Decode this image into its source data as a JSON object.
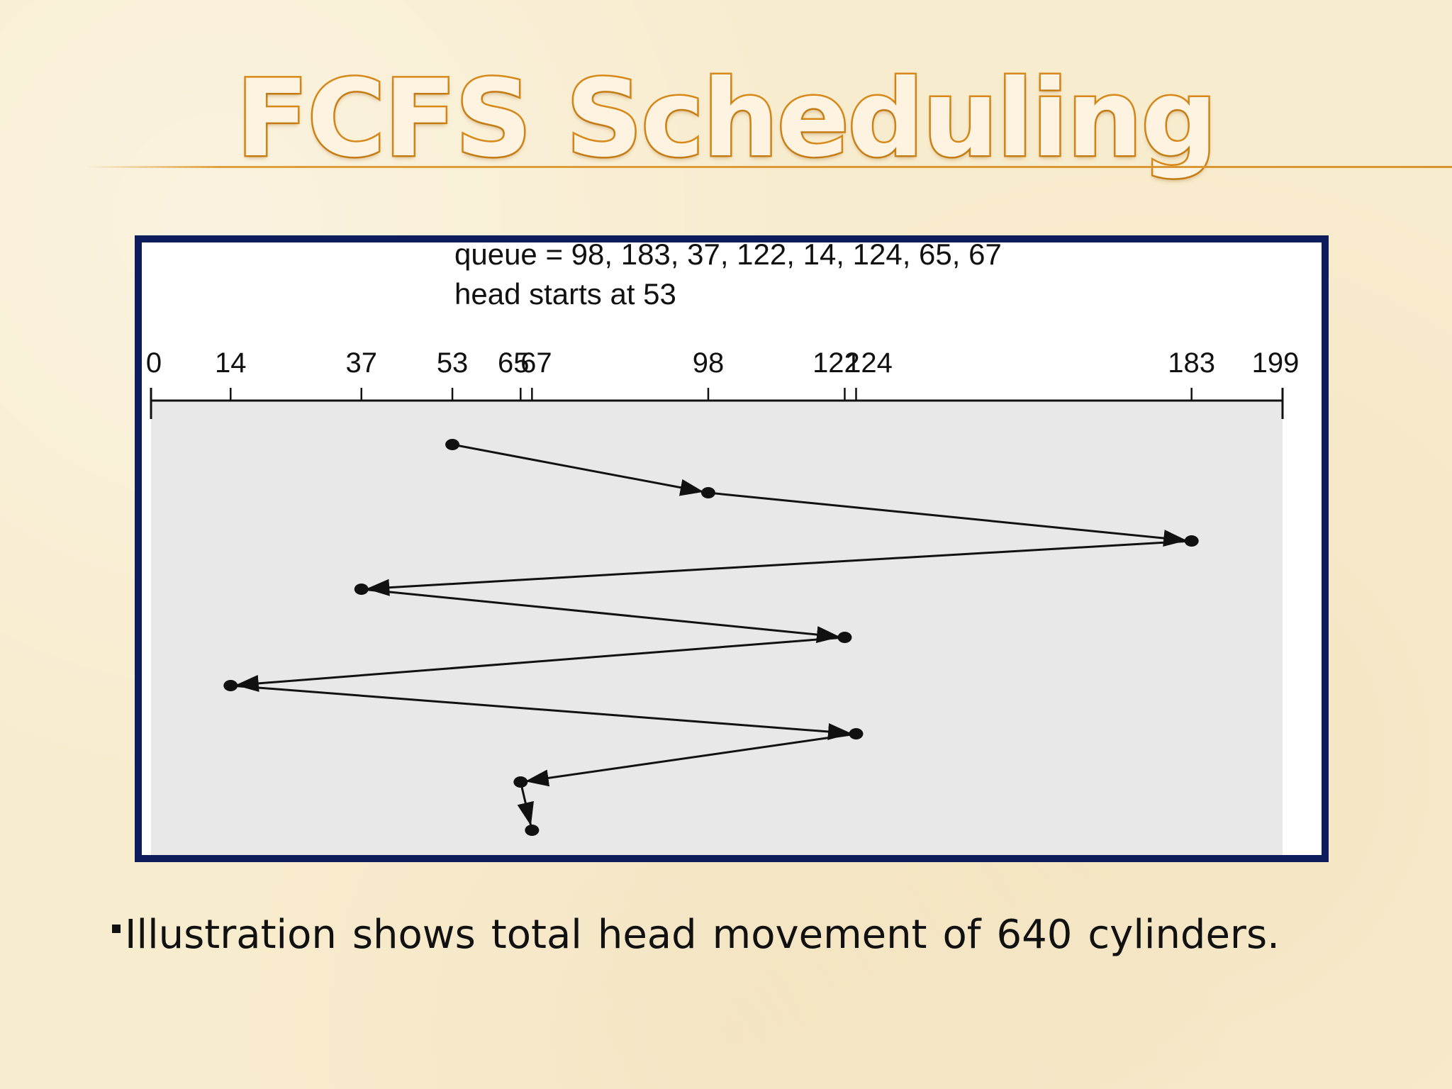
{
  "slide": {
    "title": "FCFS Scheduling",
    "caption": {
      "words": [
        "Illustration",
        "shows",
        "total",
        "head",
        "movement",
        "of",
        "640",
        "cylinders."
      ]
    }
  },
  "diagram": {
    "queue_line": "queue = 98, 183, 37, 122, 14, 124, 65, 67",
    "head_line": "head starts at 53",
    "axis_min": 0,
    "axis_max": 199,
    "tick_labels": [
      "0",
      "14",
      "37",
      "53",
      "65",
      "67",
      "98",
      "122",
      "124",
      "183",
      "199"
    ],
    "head_path": [
      53,
      98,
      183,
      37,
      122,
      14,
      124,
      65,
      67
    ]
  },
  "colors": {
    "frame": "#0c1c5c",
    "plot_area": "#e8e8e8",
    "title_outline": "#d88a1a",
    "ink": "#111111"
  }
}
